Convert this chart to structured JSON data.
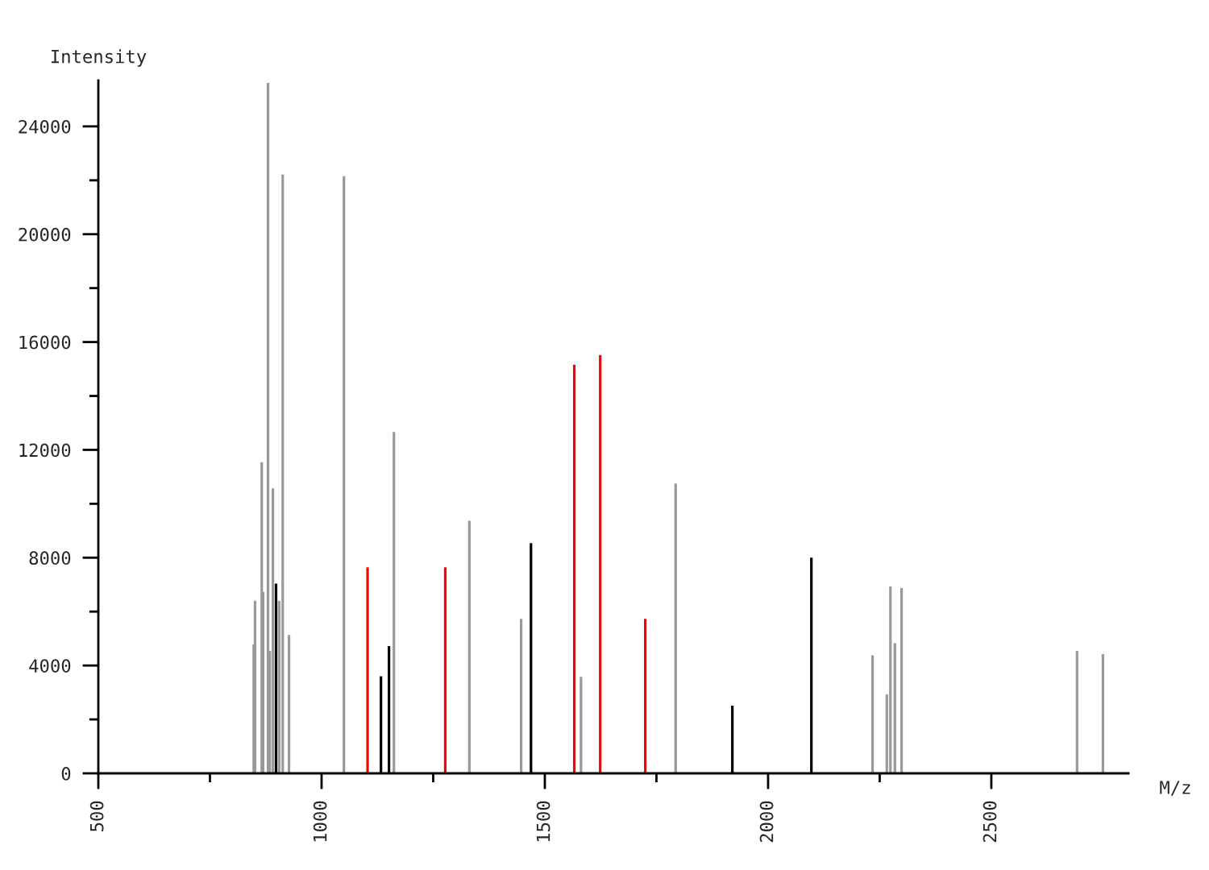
{
  "chart_data": {
    "type": "bar",
    "xlabel": "M/z",
    "ylabel": "Intensity",
    "xlim": [
      500,
      2807
    ],
    "ylim": [
      0,
      25700
    ],
    "xticks": [
      500,
      {
        "value": 750,
        "label": null
      },
      1000,
      {
        "value": 1250,
        "label": null
      },
      1500,
      {
        "value": 1750,
        "label": null
      },
      2000,
      {
        "value": 2250,
        "label": null
      },
      2500
    ],
    "yticks": [
      0,
      {
        "value": 2000,
        "label": null
      },
      4000,
      {
        "value": 6000,
        "label": null
      },
      8000,
      {
        "value": 10000,
        "label": null
      },
      12000,
      {
        "value": 14000,
        "label": null
      },
      16000,
      {
        "value": 18000,
        "label": null
      },
      20000,
      {
        "value": 22000,
        "label": null
      },
      24000
    ],
    "grid": false,
    "legend": false,
    "series": [
      {
        "color": "#999999",
        "x": [
          848,
          851,
          866,
          869,
          880,
          884,
          891,
          905,
          913,
          927,
          1050,
          1162,
          1331,
          1447,
          1581,
          1793,
          2234,
          2266,
          2274,
          2284,
          2299,
          2692,
          2750
        ],
        "values": [
          4780,
          6400,
          11540,
          6730,
          25610,
          4540,
          10570,
          6400,
          22210,
          5130,
          22150,
          12660,
          9370,
          5730,
          3580,
          10750,
          4380,
          2930,
          6930,
          4830,
          6870,
          4540,
          4420
        ]
      },
      {
        "color": "#000000",
        "x": [
          898,
          1133,
          1151,
          1469,
          1920,
          2097
        ],
        "values": [
          7040,
          3600,
          4720,
          8540,
          2510,
          8000
        ]
      },
      {
        "color": "#ff0000",
        "x": [
          1103,
          1277,
          1566,
          1624,
          1725
        ],
        "values": [
          7640,
          7640,
          15160,
          15520,
          5730
        ]
      }
    ]
  }
}
